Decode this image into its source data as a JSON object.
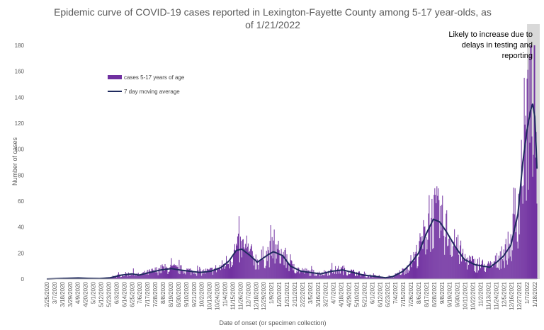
{
  "chart_data": {
    "type": "bar",
    "title_lines": [
      "Epidemic curve of COVID-19 cases reported in Lexington-Fayette County among 5-17 year-olds, as",
      "of 1/21/2022"
    ],
    "xlabel": "Date of onset (or specimen collection)",
    "ylabel": "Number of cases",
    "ylim": [
      0,
      180
    ],
    "yticks": [
      0,
      20,
      40,
      60,
      80,
      100,
      120,
      140,
      160,
      180
    ],
    "grid": false,
    "legend_position": "top-left",
    "annotation": [
      "Likely to increase due to",
      "delays in testing and",
      "reporting"
    ],
    "colors": {
      "bars": "#7030a0",
      "line": "#1f2a5e",
      "shade": "#d9d9d9"
    },
    "series": [
      {
        "name": "cases 5-17 years of age",
        "type": "bar"
      },
      {
        "name": "7 day moving average",
        "type": "line"
      }
    ],
    "x_tick_labels": [
      "2/25/2020",
      "3/7/2020",
      "3/18/2020",
      "3/29/2020",
      "4/9/2020",
      "4/20/2020",
      "5/1/2020",
      "5/12/2020",
      "5/23/2020",
      "6/3/2020",
      "6/14/2020",
      "6/25/2020",
      "7/6/2020",
      "7/17/2020",
      "7/28/2020",
      "8/8/2020",
      "8/19/2020",
      "8/30/2020",
      "9/10/2020",
      "9/21/2020",
      "10/2/2020",
      "10/13/2020",
      "10/24/2020",
      "11/4/2020",
      "11/15/2020",
      "11/26/2020",
      "12/7/2020",
      "12/18/2020",
      "12/29/2020",
      "1/9/2021",
      "1/20/2021",
      "1/31/2021",
      "2/11/2021",
      "2/22/2021",
      "3/5/2021",
      "3/16/2021",
      "3/27/2021",
      "4/7/2021",
      "4/18/2021",
      "4/29/2021",
      "5/10/2021",
      "5/21/2021",
      "6/1/2021",
      "6/12/2021",
      "6/23/2021",
      "7/4/2021",
      "7/15/2021",
      "7/26/2021",
      "8/6/2021",
      "8/17/2021",
      "8/28/2021",
      "9/8/2021",
      "9/19/2021",
      "9/30/2021",
      "10/11/2021",
      "10/22/2021",
      "11/2/2021",
      "11/13/2021",
      "11/24/2021",
      "12/5/2021",
      "12/16/2021",
      "12/27/2021",
      "1/7/2022",
      "1/18/2022"
    ],
    "x_start": "2020-02-25",
    "x_end": "2022-01-21",
    "shaded_from": "2022-01-07",
    "moving_average_points": [
      [
        "2020-02-25",
        0
      ],
      [
        "2020-03-20",
        0.5
      ],
      [
        "2020-04-10",
        0.8
      ],
      [
        "2020-04-25",
        0.5
      ],
      [
        "2020-05-10",
        0.3
      ],
      [
        "2020-05-25",
        1
      ],
      [
        "2020-06-10",
        3
      ],
      [
        "2020-06-25",
        4
      ],
      [
        "2020-07-05",
        3
      ],
      [
        "2020-07-20",
        5
      ],
      [
        "2020-08-05",
        7
      ],
      [
        "2020-08-20",
        8
      ],
      [
        "2020-09-01",
        7
      ],
      [
        "2020-09-15",
        6
      ],
      [
        "2020-09-30",
        5
      ],
      [
        "2020-10-15",
        6
      ],
      [
        "2020-10-30",
        9
      ],
      [
        "2020-11-10",
        14
      ],
      [
        "2020-11-20",
        22
      ],
      [
        "2020-11-28",
        23
      ],
      [
        "2020-12-10",
        18
      ],
      [
        "2020-12-20",
        13
      ],
      [
        "2021-01-05",
        19
      ],
      [
        "2021-01-12",
        21
      ],
      [
        "2021-01-25",
        18
      ],
      [
        "2021-02-05",
        10
      ],
      [
        "2021-02-20",
        6
      ],
      [
        "2021-03-05",
        5
      ],
      [
        "2021-03-20",
        4
      ],
      [
        "2021-04-05",
        6
      ],
      [
        "2021-04-20",
        7
      ],
      [
        "2021-05-05",
        5
      ],
      [
        "2021-05-20",
        3
      ],
      [
        "2021-06-05",
        2
      ],
      [
        "2021-06-20",
        1
      ],
      [
        "2021-07-01",
        2
      ],
      [
        "2021-07-15",
        6
      ],
      [
        "2021-07-26",
        12
      ],
      [
        "2021-08-06",
        20
      ],
      [
        "2021-08-17",
        35
      ],
      [
        "2021-08-27",
        46
      ],
      [
        "2021-09-05",
        44
      ],
      [
        "2021-09-15",
        36
      ],
      [
        "2021-09-28",
        24
      ],
      [
        "2021-10-10",
        15
      ],
      [
        "2021-10-25",
        11
      ],
      [
        "2021-11-05",
        10
      ],
      [
        "2021-11-15",
        9
      ],
      [
        "2021-11-25",
        13
      ],
      [
        "2021-12-05",
        18
      ],
      [
        "2021-12-15",
        26
      ],
      [
        "2021-12-25",
        50
      ],
      [
        "2022-01-01",
        90
      ],
      [
        "2022-01-07",
        115
      ],
      [
        "2022-01-12",
        130
      ],
      [
        "2022-01-15",
        135
      ],
      [
        "2022-01-18",
        125
      ],
      [
        "2022-01-20",
        100
      ],
      [
        "2022-01-21",
        85
      ]
    ]
  }
}
